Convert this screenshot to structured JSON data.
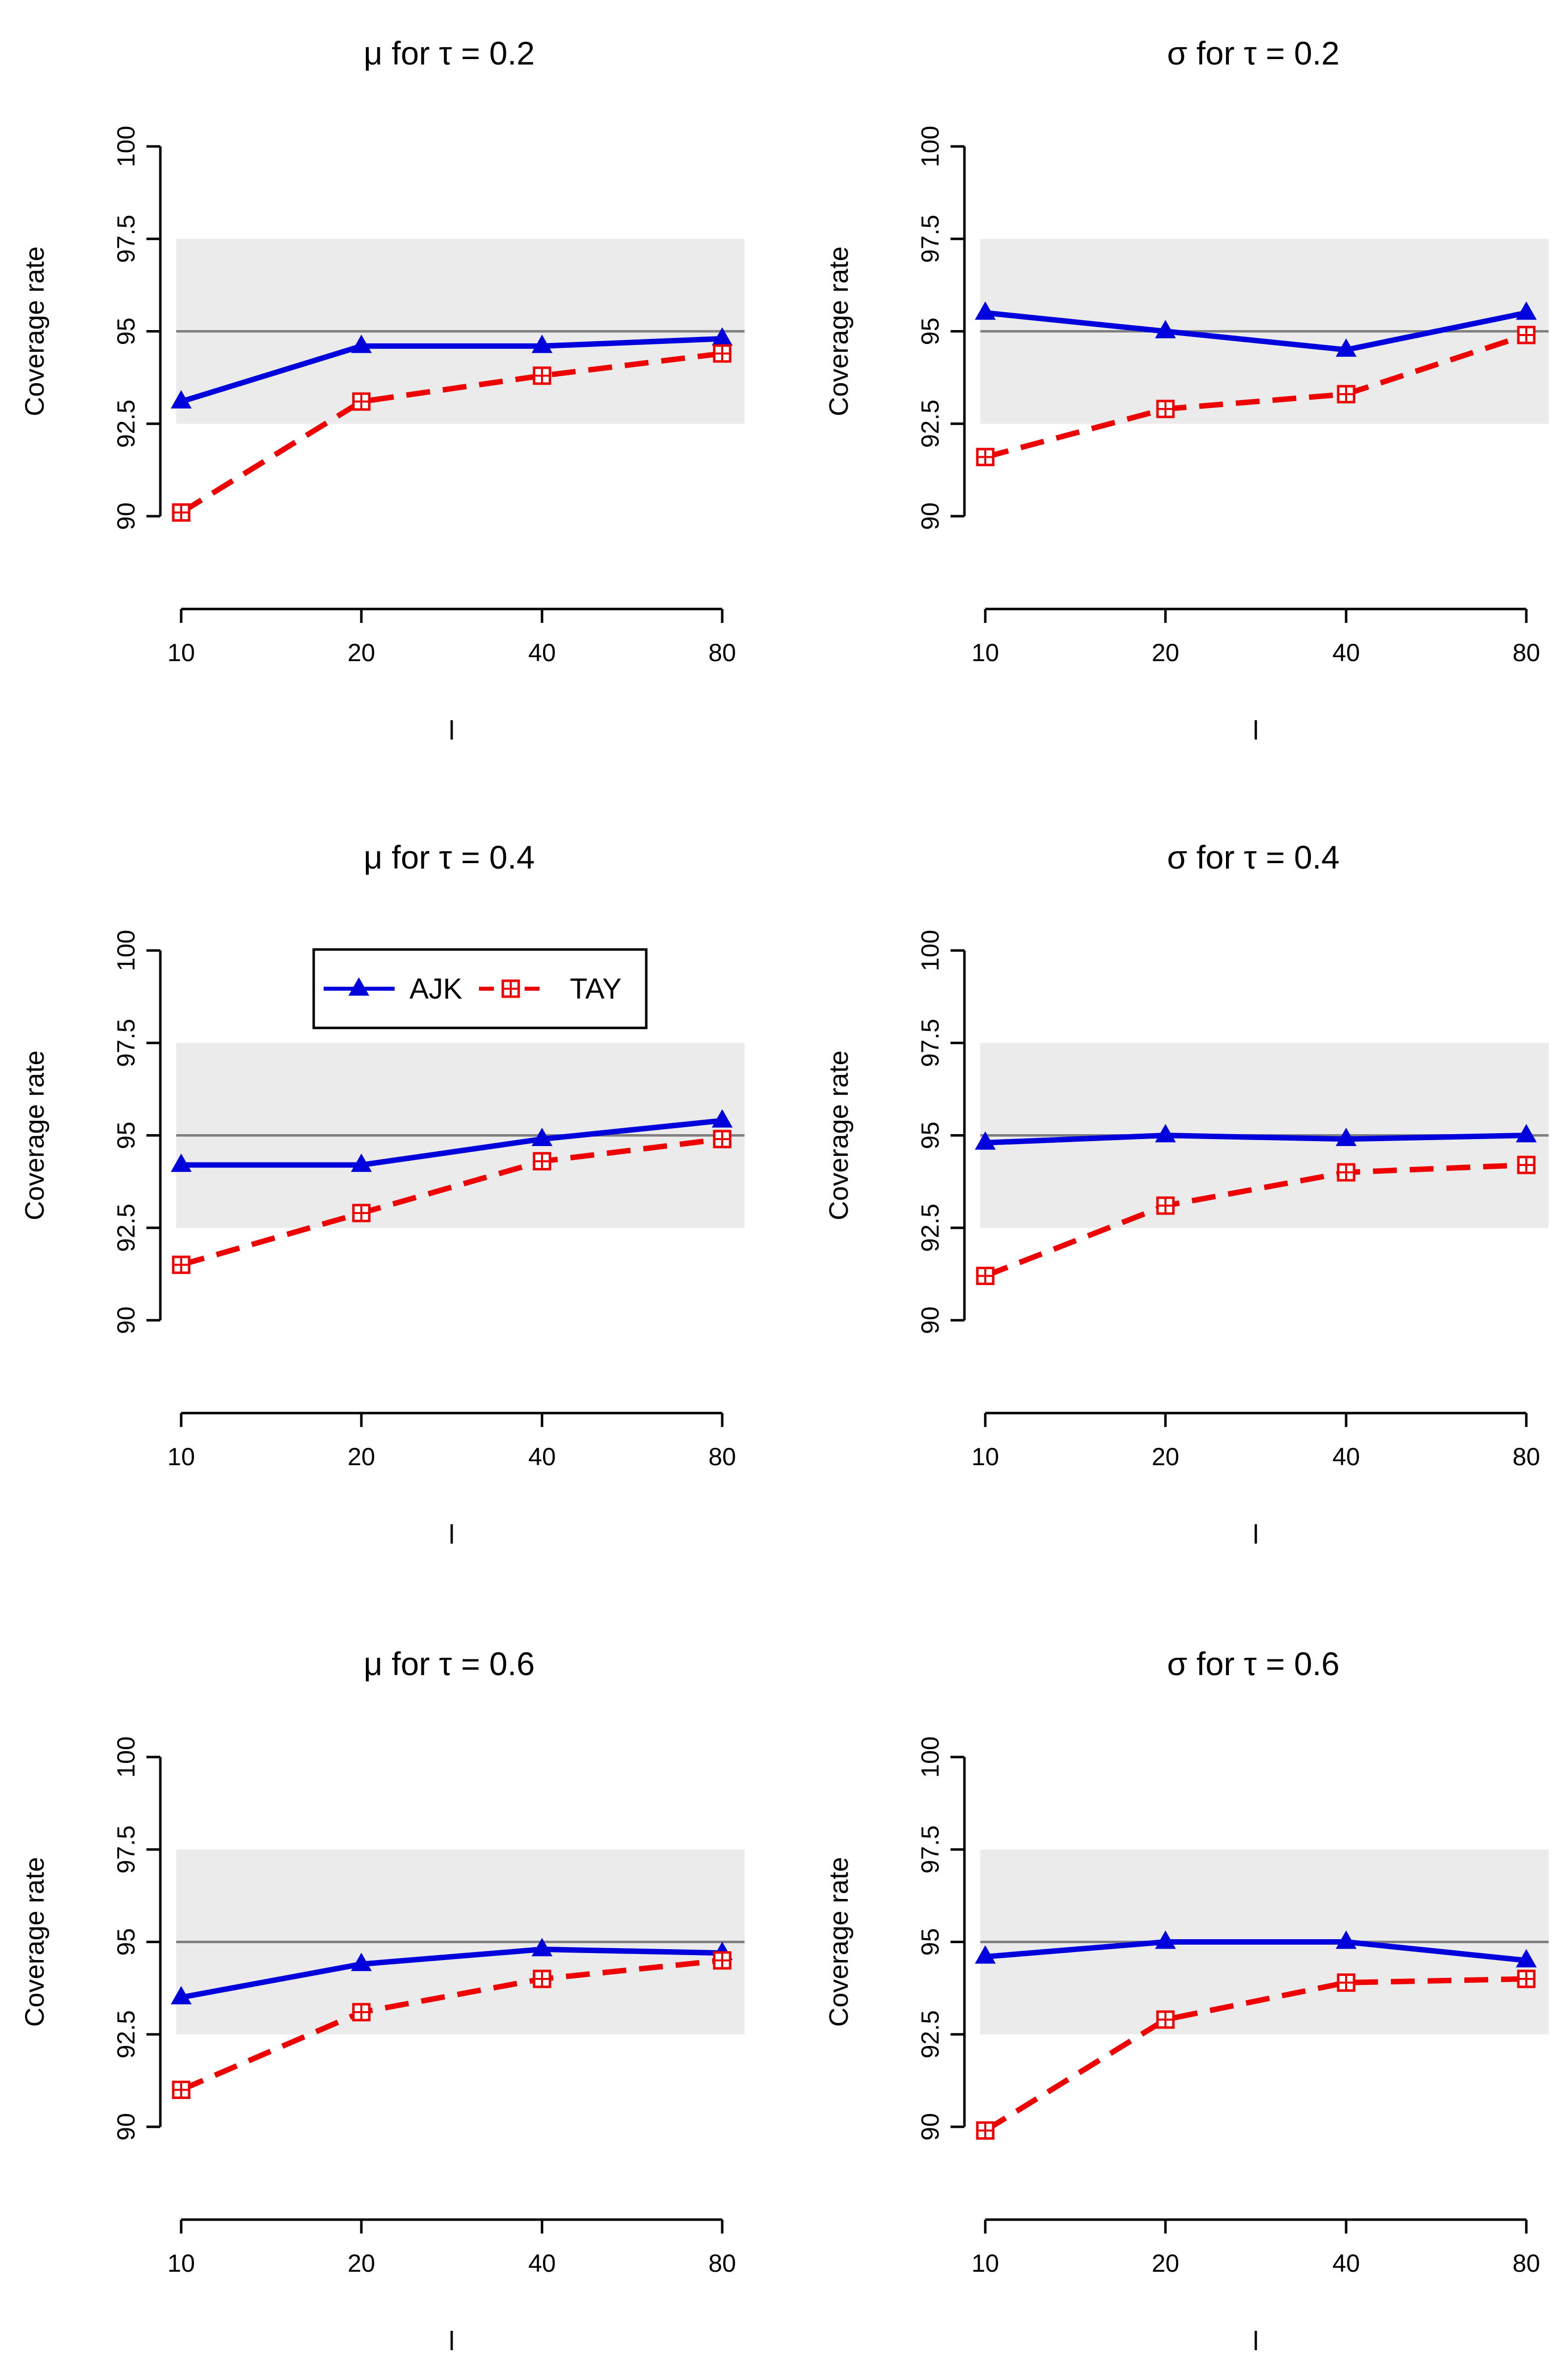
{
  "chart_data": [
    {
      "type": "line",
      "title_param": "μ",
      "title_text": " for ",
      "title_tau": "τ",
      "title_value": " = 0.2",
      "xlabel": "l",
      "ylabel": "Coverage rate",
      "categories": [
        "10",
        "20",
        "40",
        "80"
      ],
      "ylim": [
        90,
        100
      ],
      "yticks": [
        "90",
        "92.5",
        "95",
        "97.5",
        "100"
      ],
      "band": [
        92.5,
        97.5
      ],
      "reference_line": 95,
      "series": [
        {
          "name": "AJK",
          "color": "#0000dd",
          "marker": "triangle",
          "style": "solid",
          "values": [
            93.1,
            94.6,
            94.6,
            94.8
          ]
        },
        {
          "name": "TAY",
          "color": "#ee0000",
          "marker": "square-plus",
          "style": "dashed",
          "values": [
            90.1,
            93.1,
            93.8,
            94.4
          ]
        }
      ]
    },
    {
      "type": "line",
      "title_param": "σ",
      "title_text": " for ",
      "title_tau": "τ",
      "title_value": " = 0.2",
      "xlabel": "l",
      "ylabel": "Coverage rate",
      "categories": [
        "10",
        "20",
        "40",
        "80"
      ],
      "ylim": [
        90,
        100
      ],
      "yticks": [
        "90",
        "92.5",
        "95",
        "97.5",
        "100"
      ],
      "band": [
        92.5,
        97.5
      ],
      "reference_line": 95,
      "series": [
        {
          "name": "AJK",
          "color": "#0000dd",
          "marker": "triangle",
          "style": "solid",
          "values": [
            95.5,
            95.0,
            94.5,
            95.5
          ]
        },
        {
          "name": "TAY",
          "color": "#ee0000",
          "marker": "square-plus",
          "style": "dashed",
          "values": [
            91.6,
            92.9,
            93.3,
            94.9
          ]
        }
      ]
    },
    {
      "type": "line",
      "title_param": "μ",
      "title_text": " for ",
      "title_tau": "τ",
      "title_value": " = 0.4",
      "xlabel": "l",
      "ylabel": "Coverage rate",
      "categories": [
        "10",
        "20",
        "40",
        "80"
      ],
      "ylim": [
        90,
        100
      ],
      "yticks": [
        "90",
        "92.5",
        "95",
        "97.5",
        "100"
      ],
      "band": [
        92.5,
        97.5
      ],
      "reference_line": 95,
      "legend": {
        "position": "top-left",
        "entries": [
          "AJK",
          "TAY"
        ]
      },
      "series": [
        {
          "name": "AJK",
          "color": "#0000dd",
          "marker": "triangle",
          "style": "solid",
          "values": [
            94.2,
            94.2,
            94.9,
            95.4
          ]
        },
        {
          "name": "TAY",
          "color": "#ee0000",
          "marker": "square-plus",
          "style": "dashed",
          "values": [
            91.5,
            92.9,
            94.3,
            94.9
          ]
        }
      ]
    },
    {
      "type": "line",
      "title_param": "σ",
      "title_text": " for ",
      "title_tau": "τ",
      "title_value": " = 0.4",
      "xlabel": "l",
      "ylabel": "Coverage rate",
      "categories": [
        "10",
        "20",
        "40",
        "80"
      ],
      "ylim": [
        90,
        100
      ],
      "yticks": [
        "90",
        "92.5",
        "95",
        "97.5",
        "100"
      ],
      "band": [
        92.5,
        97.5
      ],
      "reference_line": 95,
      "series": [
        {
          "name": "AJK",
          "color": "#0000dd",
          "marker": "triangle",
          "style": "solid",
          "values": [
            94.8,
            95.0,
            94.9,
            95.0
          ]
        },
        {
          "name": "TAY",
          "color": "#ee0000",
          "marker": "square-plus",
          "style": "dashed",
          "values": [
            91.2,
            93.1,
            94.0,
            94.2
          ]
        }
      ]
    },
    {
      "type": "line",
      "title_param": "μ",
      "title_text": " for ",
      "title_tau": "τ",
      "title_value": " = 0.6",
      "xlabel": "l",
      "ylabel": "Coverage rate",
      "categories": [
        "10",
        "20",
        "40",
        "80"
      ],
      "ylim": [
        90,
        100
      ],
      "yticks": [
        "90",
        "92.5",
        "95",
        "97.5",
        "100"
      ],
      "band": [
        92.5,
        97.5
      ],
      "reference_line": 95,
      "series": [
        {
          "name": "AJK",
          "color": "#0000dd",
          "marker": "triangle",
          "style": "solid",
          "values": [
            93.5,
            94.4,
            94.8,
            94.7
          ]
        },
        {
          "name": "TAY",
          "color": "#ee0000",
          "marker": "square-plus",
          "style": "dashed",
          "values": [
            91.0,
            93.1,
            94.0,
            94.5
          ]
        }
      ]
    },
    {
      "type": "line",
      "title_param": "σ",
      "title_text": " for ",
      "title_tau": "τ",
      "title_value": " = 0.6",
      "xlabel": "l",
      "ylabel": "Coverage rate",
      "categories": [
        "10",
        "20",
        "40",
        "80"
      ],
      "ylim": [
        90,
        100
      ],
      "yticks": [
        "90",
        "92.5",
        "95",
        "97.5",
        "100"
      ],
      "band": [
        92.5,
        97.5
      ],
      "reference_line": 95,
      "series": [
        {
          "name": "AJK",
          "color": "#0000dd",
          "marker": "triangle",
          "style": "solid",
          "values": [
            94.6,
            95.0,
            95.0,
            94.5
          ]
        },
        {
          "name": "TAY",
          "color": "#ee0000",
          "marker": "square-plus",
          "style": "dashed",
          "values": [
            89.9,
            92.9,
            93.9,
            94.0
          ]
        }
      ]
    }
  ],
  "colors": {
    "band": "#ebebeb",
    "reference_line": "#808080",
    "axis": "#000000"
  }
}
